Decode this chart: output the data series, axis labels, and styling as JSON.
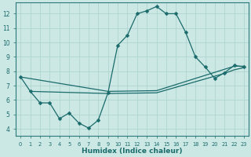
{
  "xlabel": "Humidex (Indice chaleur)",
  "background_color": "#cce8e5",
  "grid_color": "#afd4d0",
  "line_color": "#1a6b6b",
  "xlim": [
    -0.5,
    23.5
  ],
  "ylim": [
    3.5,
    12.8
  ],
  "yticks": [
    4,
    5,
    6,
    7,
    8,
    9,
    10,
    11,
    12
  ],
  "xticks": [
    0,
    1,
    2,
    3,
    4,
    5,
    6,
    7,
    8,
    9,
    10,
    11,
    12,
    13,
    14,
    15,
    16,
    17,
    18,
    19,
    20,
    21,
    22,
    23
  ],
  "line1_x": [
    0,
    1,
    2,
    3,
    4,
    5,
    6,
    7,
    8,
    9,
    10,
    11,
    12,
    13,
    14,
    15,
    16,
    17,
    18,
    19,
    20,
    21,
    22,
    23
  ],
  "line1_y": [
    7.6,
    6.6,
    5.8,
    5.8,
    4.7,
    5.1,
    4.4,
    4.05,
    4.6,
    6.5,
    9.8,
    10.5,
    12.0,
    12.2,
    12.5,
    12.0,
    12.0,
    10.7,
    9.0,
    8.3,
    7.5,
    7.9,
    8.4,
    8.3
  ],
  "line2_x": [
    0,
    9,
    14,
    22,
    23
  ],
  "line2_y": [
    7.6,
    6.6,
    6.65,
    8.35,
    8.35
  ],
  "line3_x": [
    1,
    9,
    14,
    21,
    22,
    23
  ],
  "line3_y": [
    6.6,
    6.45,
    6.5,
    7.85,
    8.1,
    8.25
  ],
  "markersize": 2.5,
  "linewidth": 0.9
}
